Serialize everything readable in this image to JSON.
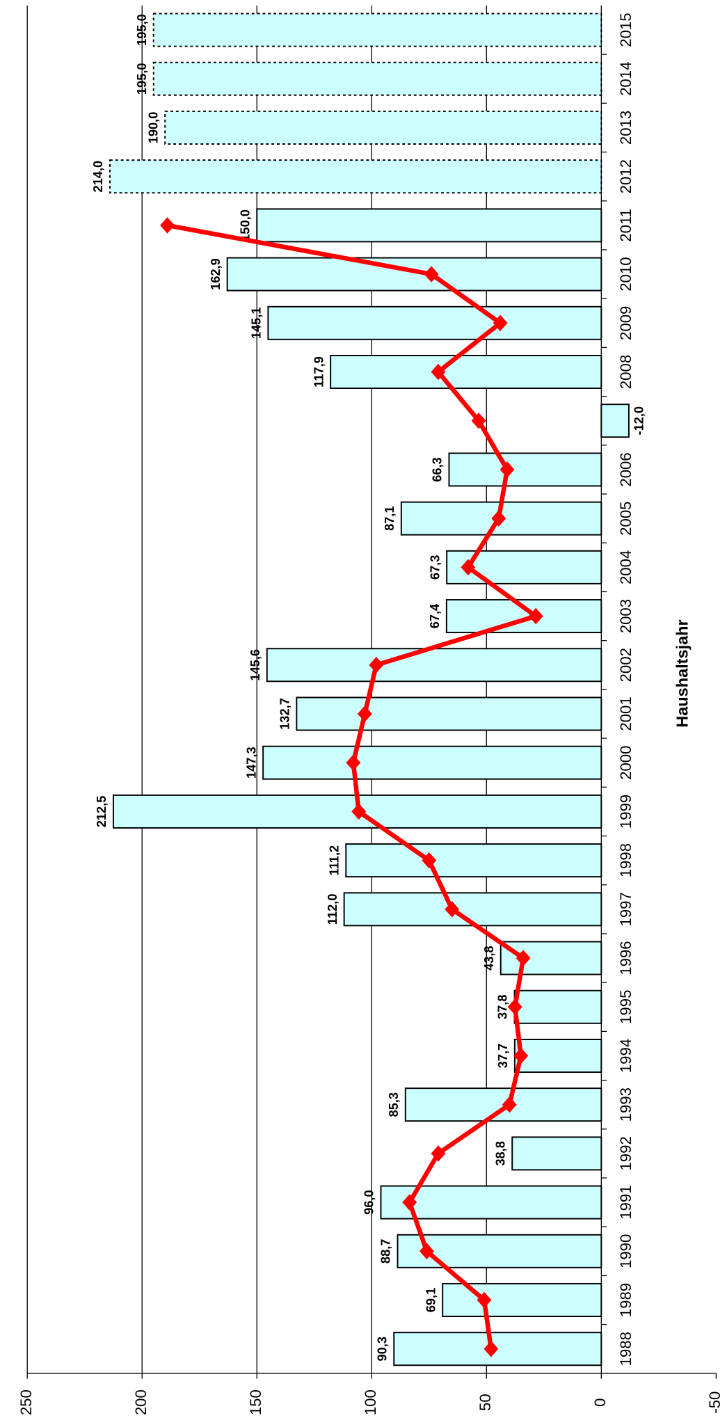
{
  "chart_data": {
    "type": "bar",
    "x_label": "Haushaltsjahr",
    "categories": [
      "1988",
      "1989",
      "1990",
      "1991",
      "1992",
      "1993",
      "1994",
      "1995",
      "1996",
      "1997",
      "1998",
      "1999",
      "2000",
      "2001",
      "2002",
      "2003",
      "2004",
      "2005",
      "2006",
      null,
      "2008",
      "2009",
      "2010",
      "2011",
      "2012",
      "2013",
      "2014",
      "2015"
    ],
    "bars": {
      "color": "#ccffff",
      "values": [
        90.3,
        69.1,
        88.7,
        96.0,
        38.8,
        85.3,
        37.7,
        37.8,
        43.8,
        112.0,
        111.2,
        212.5,
        147.3,
        132.7,
        145.6,
        67.4,
        67.3,
        87.1,
        66.3,
        -12.0,
        117.9,
        145.1,
        162.9,
        150.0,
        214.0,
        190.0,
        195.0,
        195.0
      ],
      "value_labels": [
        "90,3",
        "69,1",
        "88,7",
        "96,0",
        "38,8",
        "85,3",
        "37,7",
        "37,8",
        "43,8",
        "112,0",
        "111,2",
        "212,5",
        "147,3",
        "132,7",
        "145,6",
        "67,4",
        "67,3",
        "87,1",
        "66,3",
        "-12,0",
        "117,9",
        "145,1",
        "162,9",
        "150,0",
        "214,0",
        "190,0",
        "195,0",
        "195,0"
      ],
      "dashed": [
        false,
        false,
        false,
        false,
        false,
        false,
        false,
        false,
        false,
        false,
        false,
        false,
        false,
        false,
        false,
        false,
        false,
        false,
        false,
        false,
        false,
        false,
        false,
        false,
        true,
        true,
        true,
        true
      ]
    },
    "line": {
      "color": "#ff0000",
      "values": [
        48,
        51,
        76,
        83.5,
        71,
        40,
        35,
        37.6,
        34,
        65,
        75,
        105.6,
        108,
        103,
        98,
        28.5,
        58,
        44.7,
        41,
        53.4,
        71,
        44,
        74,
        189,
        null,
        null,
        null,
        null
      ]
    },
    "ylim": [
      -50,
      250
    ],
    "yticks": [
      250,
      200,
      150,
      100,
      50,
      0,
      -50
    ],
    "grid": true
  }
}
